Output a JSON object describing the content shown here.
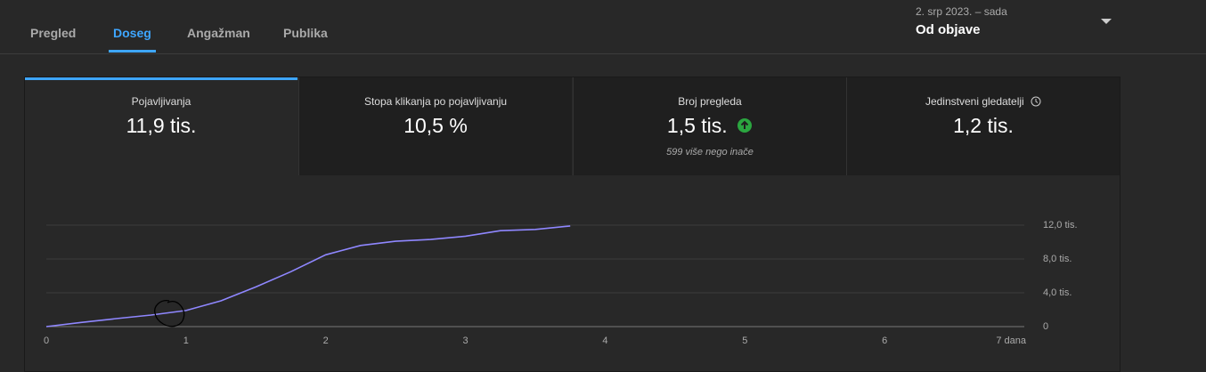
{
  "tabs": [
    "Pregled",
    "Doseg",
    "Angažman",
    "Publika"
  ],
  "active_tab": 1,
  "date_range": {
    "period": "2. srp 2023. – sada",
    "label": "Od objave"
  },
  "metrics": [
    {
      "label": "Pojavljivanja",
      "value": "11,9 tis."
    },
    {
      "label": "Stopa klikanja po pojavljivanju",
      "value": "10,5 %"
    },
    {
      "label": "Broj pregleda",
      "value": "1,5 tis.",
      "note": "599 više nego inače"
    },
    {
      "label": "Jedinstveni gledatelji",
      "value": "1,2 tis."
    }
  ],
  "chart_data": {
    "type": "line",
    "color": "#8f87ff",
    "x": [
      0,
      0.25,
      0.5,
      0.75,
      1,
      1.25,
      1.5,
      1.75,
      2,
      2.25,
      2.5,
      2.75,
      3,
      3.25,
      3.5,
      3.75
    ],
    "values": [
      0,
      500,
      950,
      1370,
      1900,
      3050,
      4700,
      6500,
      8500,
      9600,
      10100,
      10300,
      10700,
      11350,
      11500,
      11900
    ],
    "xlim": [
      0,
      7
    ],
    "xticks": [
      0,
      1,
      2,
      3,
      4,
      5,
      6,
      {
        "value": 7,
        "label": "7 dana"
      }
    ],
    "ylim": [
      0,
      12000
    ],
    "yticks": [
      0,
      {
        "value": 4000,
        "label": "4,0 tis."
      },
      {
        "value": 8000,
        "label": "8,0 tis."
      },
      {
        "value": 12000,
        "label": "12,0 tis."
      }
    ],
    "grid": true
  }
}
